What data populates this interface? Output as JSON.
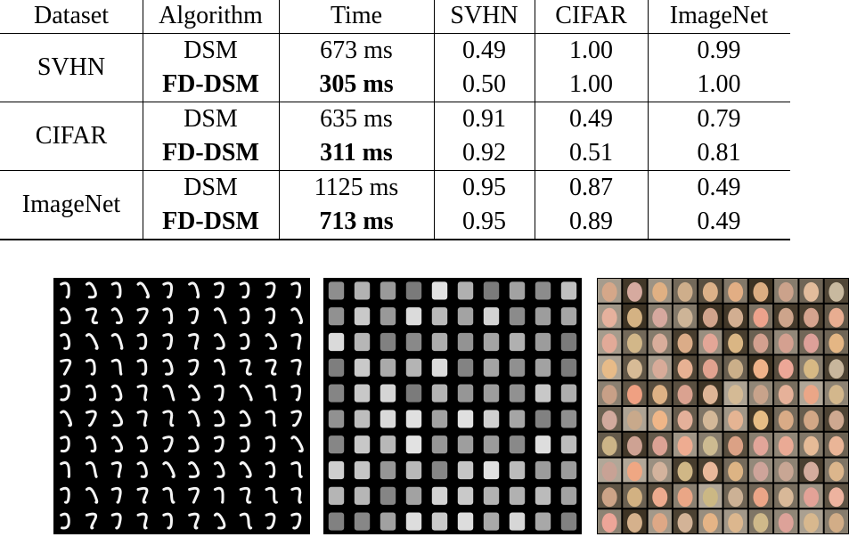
{
  "table": {
    "header": [
      "Dataset",
      "Algorithm",
      "Time",
      "SVHN",
      "CIFAR",
      "ImageNet"
    ],
    "groups": [
      {
        "dataset": "SVHN",
        "rows": [
          [
            "DSM",
            "673 ms",
            "0.49",
            "1.00",
            "0.99"
          ],
          [
            "FD-DSM",
            "305 ms",
            "0.50",
            "1.00",
            "1.00"
          ]
        ]
      },
      {
        "dataset": "CIFAR",
        "rows": [
          [
            "DSM",
            "635 ms",
            "0.91",
            "0.49",
            "0.79"
          ],
          [
            "FD-DSM",
            "311 ms",
            "0.92",
            "0.51",
            "0.81"
          ]
        ]
      },
      {
        "dataset": "ImageNet",
        "rows": [
          [
            "DSM",
            "1125 ms",
            "0.95",
            "0.87",
            "0.49"
          ],
          [
            "FD-DSM",
            "713 ms",
            "0.95",
            "0.89",
            "0.49"
          ]
        ]
      }
    ]
  }
}
